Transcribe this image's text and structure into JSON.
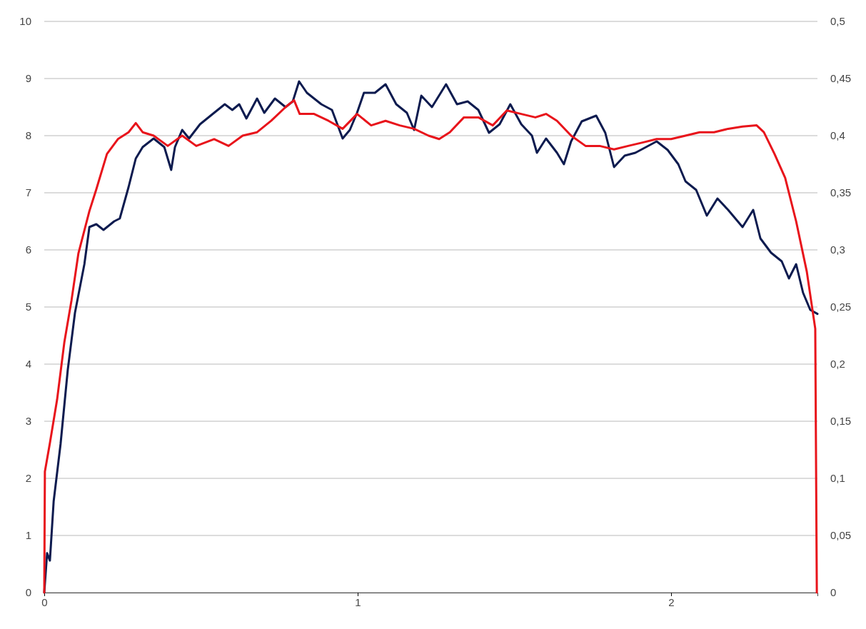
{
  "chart_data": {
    "type": "line",
    "xlim": [
      0,
      2.467
    ],
    "xticks": [
      0,
      1,
      2
    ],
    "ylim": [
      0,
      10
    ],
    "yticks": [
      0,
      1,
      2,
      3,
      4,
      5,
      6,
      7,
      8,
      9,
      10
    ],
    "y2lim": [
      0,
      0.5
    ],
    "y2ticks": [
      0,
      {
        "value": 0.05,
        "label": "0,05"
      },
      {
        "value": 0.1,
        "label": "0,1"
      },
      {
        "value": 0.15,
        "label": "0,15"
      },
      {
        "value": 0.2,
        "label": "0,2"
      },
      {
        "value": 0.25,
        "label": "0,25"
      },
      {
        "value": 0.3,
        "label": "0,3"
      },
      {
        "value": 0.35,
        "label": "0,35"
      },
      {
        "value": 0.4,
        "label": "0,4"
      },
      {
        "value": 0.45,
        "label": "0,45"
      },
      {
        "value": 0.5,
        "label": "0,5"
      }
    ],
    "grid": "y",
    "marker": "none",
    "line_style": "solid",
    "series": [
      {
        "color": "#0d1b4f",
        "x": [
          0,
          0.009,
          0.018,
          0.03,
          0.052,
          0.075,
          0.098,
          0.128,
          0.144,
          0.166,
          0.189,
          0.223,
          0.241,
          0.269,
          0.292,
          0.314,
          0.349,
          0.383,
          0.405,
          0.417,
          0.44,
          0.462,
          0.497,
          0.542,
          0.576,
          0.6,
          0.622,
          0.645,
          0.679,
          0.702,
          0.736,
          0.77,
          0.793,
          0.813,
          0.838,
          0.884,
          0.918,
          0.952,
          0.975,
          0.998,
          1.02,
          1.055,
          1.089,
          1.123,
          1.157,
          1.18,
          1.203,
          1.237,
          1.282,
          1.317,
          1.351,
          1.385,
          1.419,
          1.453,
          1.487,
          1.522,
          1.556,
          1.572,
          1.601,
          1.636,
          1.658,
          1.681,
          1.715,
          1.761,
          1.79,
          1.818,
          1.852,
          1.886,
          1.92,
          1.954,
          1.989,
          2.023,
          2.046,
          2.08,
          2.114,
          2.148,
          2.182,
          2.228,
          2.262,
          2.285,
          2.319,
          2.353,
          2.376,
          2.399,
          2.421,
          2.444,
          2.467
        ],
        "values": [
          0,
          0.69,
          0.56,
          1.6,
          2.6,
          3.9,
          4.9,
          5.75,
          6.4,
          6.45,
          6.35,
          6.5,
          6.55,
          7.1,
          7.6,
          7.8,
          7.95,
          7.8,
          7.4,
          7.8,
          8.1,
          7.95,
          8.2,
          8.4,
          8.55,
          8.45,
          8.55,
          8.3,
          8.65,
          8.4,
          8.65,
          8.5,
          8.6,
          8.95,
          8.75,
          8.55,
          8.45,
          7.95,
          8.1,
          8.4,
          8.75,
          8.75,
          8.9,
          8.55,
          8.4,
          8.1,
          8.7,
          8.5,
          8.9,
          8.55,
          8.6,
          8.45,
          8.05,
          8.2,
          8.55,
          8.2,
          8.0,
          7.7,
          7.95,
          7.7,
          7.5,
          7.9,
          8.25,
          8.35,
          8.05,
          7.45,
          7.65,
          7.7,
          7.8,
          7.9,
          7.75,
          7.5,
          7.2,
          7.05,
          6.6,
          6.9,
          6.7,
          6.4,
          6.7,
          6.2,
          5.95,
          5.8,
          5.5,
          5.75,
          5.25,
          4.95,
          4.88
        ]
      },
      {
        "color": "#e8141b",
        "axis": "y2",
        "x": [
          0,
          0.002,
          0.018,
          0.041,
          0.064,
          0.087,
          0.109,
          0.144,
          0.166,
          0.2,
          0.235,
          0.269,
          0.292,
          0.314,
          0.349,
          0.394,
          0.44,
          0.485,
          0.542,
          0.588,
          0.633,
          0.679,
          0.724,
          0.77,
          0.797,
          0.815,
          0.861,
          0.907,
          0.952,
          0.998,
          1.043,
          1.089,
          1.134,
          1.18,
          1.226,
          1.26,
          1.294,
          1.339,
          1.385,
          1.431,
          1.476,
          1.522,
          1.567,
          1.601,
          1.636,
          1.681,
          1.727,
          1.772,
          1.818,
          1.863,
          1.909,
          1.954,
          2.0,
          2.046,
          2.091,
          2.137,
          2.182,
          2.228,
          2.273,
          2.296,
          2.33,
          2.364,
          2.399,
          2.433,
          2.46,
          2.465
        ],
        "values": [
          0,
          0.106,
          0.131,
          0.169,
          0.219,
          0.256,
          0.297,
          0.334,
          0.353,
          0.384,
          0.397,
          0.403,
          0.411,
          0.403,
          0.4,
          0.391,
          0.4,
          0.391,
          0.397,
          0.391,
          0.4,
          0.403,
          0.413,
          0.425,
          0.431,
          0.419,
          0.419,
          0.413,
          0.406,
          0.419,
          0.409,
          0.413,
          0.409,
          0.406,
          0.4,
          0.397,
          0.403,
          0.416,
          0.416,
          0.409,
          0.422,
          0.419,
          0.416,
          0.419,
          0.413,
          0.4,
          0.391,
          0.391,
          0.388,
          0.391,
          0.394,
          0.397,
          0.397,
          0.4,
          0.403,
          0.403,
          0.406,
          0.408,
          0.409,
          0.403,
          0.384,
          0.363,
          0.325,
          0.281,
          0.231,
          0
        ]
      }
    ]
  }
}
